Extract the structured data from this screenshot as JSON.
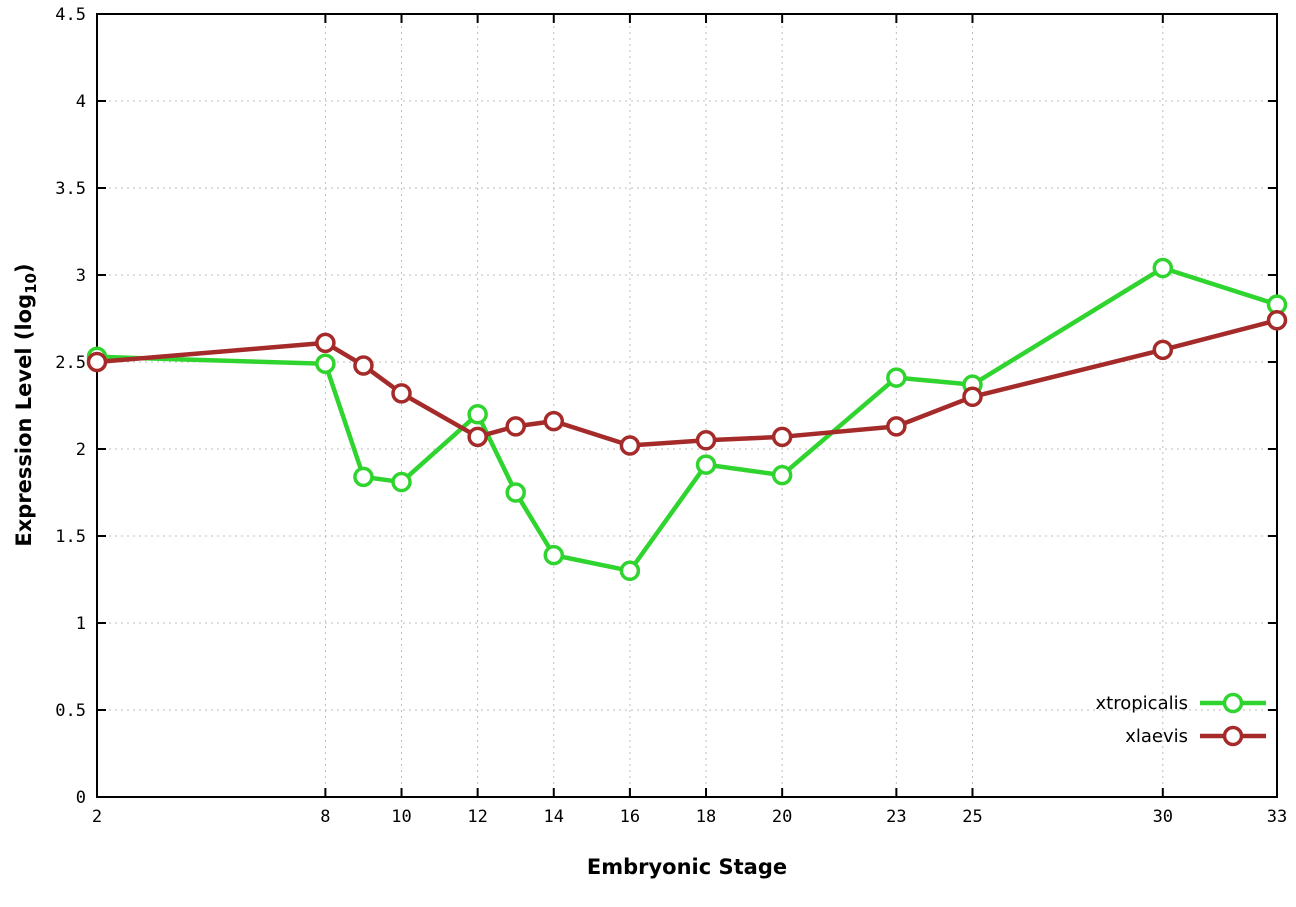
{
  "chart_data": {
    "type": "line",
    "title": "",
    "xlabel": "Embryonic Stage",
    "ylabel": "Expression Level (log10)",
    "ylabel_parts": {
      "prefix": "Expression Level (log",
      "sub": "10",
      "suffix": ")"
    },
    "xlim": [
      2,
      33
    ],
    "ylim": [
      0,
      4.5
    ],
    "x_ticks": [
      2,
      8,
      10,
      12,
      14,
      16,
      18,
      20,
      23,
      25,
      30,
      33
    ],
    "y_ticks": [
      0,
      0.5,
      1,
      1.5,
      2,
      2.5,
      3,
      3.5,
      4,
      4.5
    ],
    "grid": true,
    "legend_position": "bottom-right",
    "x": [
      2,
      8,
      9,
      10,
      12,
      13,
      14,
      16,
      18,
      20,
      23,
      25,
      30,
      33
    ],
    "series": [
      {
        "name": "xtropicalis",
        "color": "#2fd42f",
        "values": [
          2.53,
          2.49,
          1.84,
          1.81,
          2.2,
          1.75,
          1.39,
          1.3,
          1.91,
          1.85,
          2.41,
          2.37,
          3.04,
          2.83
        ]
      },
      {
        "name": "xlaevis",
        "color": "#a52a2a",
        "values": [
          2.5,
          2.61,
          2.48,
          2.32,
          2.07,
          2.13,
          2.16,
          2.02,
          2.05,
          2.07,
          2.13,
          2.3,
          2.57,
          2.74
        ]
      }
    ],
    "style": {
      "grid_color": "#bdbdbd",
      "axis_color": "#000000",
      "background_color": "#ffffff",
      "marker_fill": "#ffffff"
    }
  }
}
